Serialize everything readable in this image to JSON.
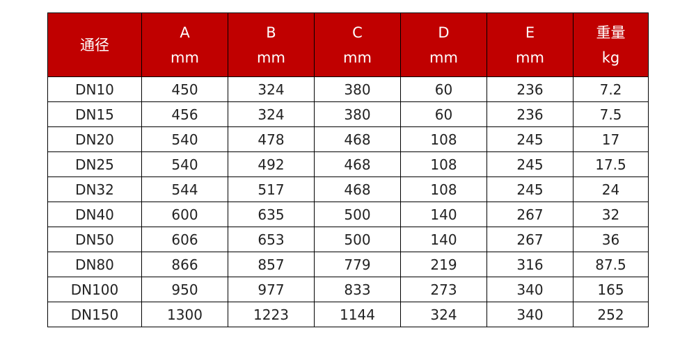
{
  "colors": {
    "header_bg": "#c00000",
    "header_text": "#ffffff"
  },
  "headers": [
    {
      "line1": "通径",
      "line2": ""
    },
    {
      "line1": "A",
      "line2": "mm"
    },
    {
      "line1": "B",
      "line2": "mm"
    },
    {
      "line1": "C",
      "line2": "mm"
    },
    {
      "line1": "D",
      "line2": "mm"
    },
    {
      "line1": "E",
      "line2": "mm"
    },
    {
      "line1": "重量",
      "line2": "kg"
    }
  ],
  "rows": [
    [
      "DN10",
      "450",
      "324",
      "380",
      "60",
      "236",
      "7.2"
    ],
    [
      "DN15",
      "456",
      "324",
      "380",
      "60",
      "236",
      "7.5"
    ],
    [
      "DN20",
      "540",
      "478",
      "468",
      "108",
      "245",
      "17"
    ],
    [
      "DN25",
      "540",
      "492",
      "468",
      "108",
      "245",
      "17.5"
    ],
    [
      "DN32",
      "544",
      "517",
      "468",
      "108",
      "245",
      "24"
    ],
    [
      "DN40",
      "600",
      "635",
      "500",
      "140",
      "267",
      "32"
    ],
    [
      "DN50",
      "606",
      "653",
      "500",
      "140",
      "267",
      "36"
    ],
    [
      "DN80",
      "866",
      "857",
      "779",
      "219",
      "316",
      "87.5"
    ],
    [
      "DN100",
      "950",
      "977",
      "833",
      "273",
      "340",
      "165"
    ],
    [
      "DN150",
      "1300",
      "1223",
      "1144",
      "324",
      "340",
      "252"
    ]
  ]
}
